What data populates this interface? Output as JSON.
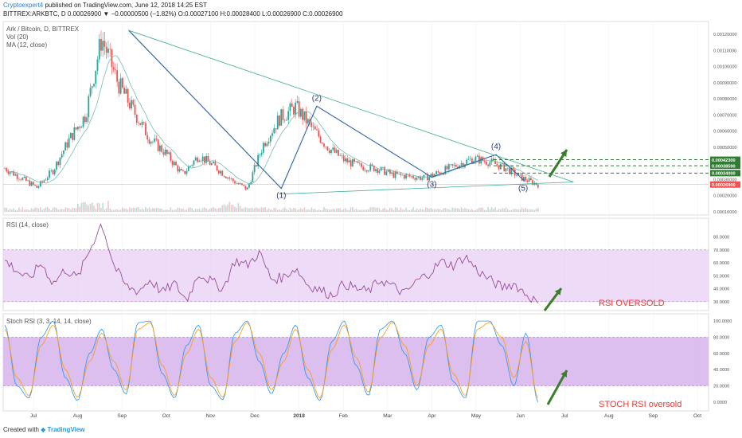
{
  "header": {
    "author": "Cryptoexpert4",
    "published_text": "published on TradingView.com, June 12, 2018 14:25 EST",
    "line2": "BITTREX:ARKBTC, D 0.00026900 ▼ −0.00000500 (−1.82%) O:0.00027100 H:0.00028400 L:0.00026900 C:0.00026900"
  },
  "legend": {
    "title": "Ark / Bitcoin, D, BITTREX",
    "vol": "Vol (20)",
    "ma": "MA (12, close)",
    "rsi": "RSI (14, close)",
    "stoch": "Stoch RSI (3, 3, 14, 14, close)"
  },
  "footer": {
    "created_with": "Created with",
    "brand": "TradingView"
  },
  "colors": {
    "up": "#26a69a",
    "down": "#ef5350",
    "trend": "#2962a8",
    "rsi": "#8e3d8e",
    "stoch_k": "#2196f3",
    "stoch_d": "#ff9800",
    "arrow": "#3a7d2c",
    "band": "#e7ccf4",
    "annot": "#e53935"
  },
  "chart_data": [
    {
      "type": "candlestick",
      "title": "Ark / Bitcoin, D, BITTREX",
      "x_ticks": [
        "Jul",
        "Aug",
        "Sep",
        "Oct",
        "Nov",
        "Dec",
        "2018",
        "Feb",
        "Mar",
        "Apr",
        "May",
        "Jun",
        "Jul",
        "Aug",
        "Sep",
        "Oct"
      ],
      "y_ticks": [
        "0.00120000",
        "0.00110000",
        "0.00100000",
        "0.00090000",
        "0.00080000",
        "0.00070000",
        "0.00060000",
        "0.00050000",
        "0.00040000",
        "0.00030000",
        "0.00020000",
        "0.00010000"
      ],
      "ylim": [
        0.0001,
        0.00125
      ],
      "price_labels": [
        "0.00042300",
        "0.00038590",
        "0.00034000",
        "0.00026900"
      ],
      "close_series": [
        [
          "Jul",
          0.00037
        ],
        [
          "Jul",
          0.00031
        ],
        [
          "Aug",
          0.00025
        ],
        [
          "Aug",
          0.00036
        ],
        [
          "Aug",
          0.00055
        ],
        [
          "Sep",
          0.0007
        ],
        [
          "Sep",
          0.00118
        ],
        [
          "Sep",
          0.0009
        ],
        [
          "Oct",
          0.00072
        ],
        [
          "Oct",
          0.00055
        ],
        [
          "Oct",
          0.00046
        ],
        [
          "Nov",
          0.00033
        ],
        [
          "Nov",
          0.00045
        ],
        [
          "Nov",
          0.00038
        ],
        [
          "Dec",
          0.0003
        ],
        [
          "Dec",
          0.00024
        ],
        [
          "Dec",
          0.00052
        ],
        [
          "2018",
          0.00068
        ],
        [
          "2018",
          0.00075
        ],
        [
          "2018",
          0.00062
        ],
        [
          "Feb",
          0.0005
        ],
        [
          "Feb",
          0.00042
        ],
        [
          "Feb",
          0.00038
        ],
        [
          "Mar",
          0.00037
        ],
        [
          "Mar",
          0.00033
        ],
        [
          "Mar",
          0.00032
        ],
        [
          "Apr",
          0.00031
        ],
        [
          "Apr",
          0.00035
        ],
        [
          "Apr",
          0.00039
        ],
        [
          "May",
          0.00043
        ],
        [
          "May",
          0.00041
        ],
        [
          "May",
          0.00037
        ],
        [
          "Jun",
          0.00031
        ],
        [
          "Jun",
          0.000269
        ]
      ],
      "wave_labels": [
        "(1)",
        "(2)",
        "(3)",
        "(4)",
        "(5)"
      ]
    },
    {
      "type": "line",
      "title": "RSI (14, close)",
      "y_ticks": [
        "80.0000",
        "70.0000",
        "60.0000",
        "50.0000",
        "40.0000",
        "30.0000"
      ],
      "ylim": [
        25,
        92
      ],
      "band": [
        30,
        70
      ],
      "values": [
        62,
        54,
        47,
        60,
        44,
        55,
        48,
        70,
        91,
        58,
        42,
        38,
        47,
        37,
        44,
        31,
        52,
        46,
        40,
        62,
        58,
        68,
        47,
        49,
        56,
        43,
        39,
        35,
        44,
        40,
        38,
        47,
        42,
        36,
        46,
        52,
        61,
        58,
        65,
        54,
        47,
        41,
        44,
        36,
        29
      ],
      "annotation": "RSI OVERSOLD"
    },
    {
      "type": "line",
      "title": "Stoch RSI (3, 3, 14, 14, close)",
      "y_ticks": [
        "100.0000",
        "80.0000",
        "60.0000",
        "40.0000",
        "20.0000",
        "0.0000"
      ],
      "ylim": [
        -5,
        105
      ],
      "band": [
        20,
        80
      ],
      "series": [
        {
          "values": [
            95,
            20,
            5,
            80,
            100,
            30,
            2,
            60,
            90,
            40,
            10,
            98,
            100,
            35,
            5,
            70,
            95,
            20,
            3,
            85,
            100,
            50,
            10,
            60,
            95,
            30,
            2,
            75,
            100,
            45,
            8,
            90,
            100,
            60,
            15,
            80,
            95,
            25,
            5,
            100,
            100,
            70,
            20,
            85,
            0
          ]
        },
        {
          "values": [
            90,
            30,
            8,
            70,
            95,
            40,
            6,
            50,
            85,
            50,
            15,
            90,
            98,
            45,
            8,
            60,
            90,
            30,
            6,
            75,
            98,
            60,
            15,
            50,
            90,
            40,
            5,
            65,
            95,
            55,
            12,
            80,
            98,
            70,
            20,
            70,
            90,
            35,
            8,
            90,
            98,
            80,
            30,
            75,
            5
          ]
        }
      ],
      "annotation": "STOCH RSI oversold"
    }
  ]
}
